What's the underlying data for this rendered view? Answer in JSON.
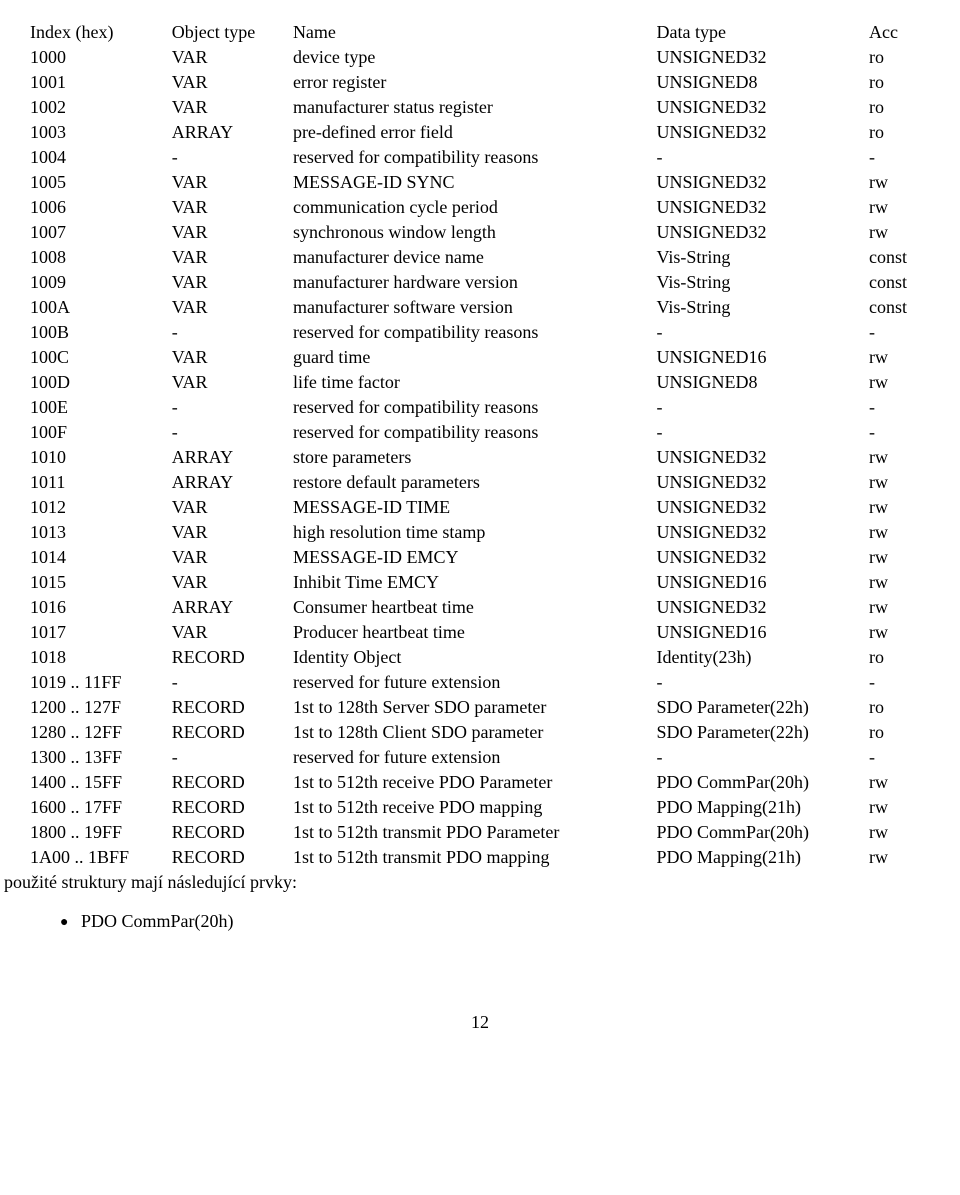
{
  "columns": [
    "Index (hex)",
    "Object type",
    "Name",
    "Data type",
    "Acc"
  ],
  "rows": [
    [
      "1000",
      "VAR",
      "device type",
      "UNSIGNED32",
      "ro"
    ],
    [
      "1001",
      "VAR",
      "error register",
      "UNSIGNED8",
      "ro"
    ],
    [
      "1002",
      "VAR",
      "manufacturer status register",
      "UNSIGNED32",
      "ro"
    ],
    [
      "1003",
      "ARRAY",
      "pre-defined error field",
      "UNSIGNED32",
      "ro"
    ],
    [
      "1004",
      "-",
      "reserved for compatibility reasons",
      "-",
      "-"
    ],
    [
      "1005",
      "VAR",
      "MESSAGE-ID SYNC",
      "UNSIGNED32",
      "rw"
    ],
    [
      "1006",
      "VAR",
      "communication cycle period",
      "UNSIGNED32",
      "rw"
    ],
    [
      "1007",
      "VAR",
      "synchronous window length",
      "UNSIGNED32",
      "rw"
    ],
    [
      "1008",
      "VAR",
      "manufacturer device name",
      "Vis-String",
      "const"
    ],
    [
      "1009",
      "VAR",
      "manufacturer hardware version",
      "Vis-String",
      "const"
    ],
    [
      "100A",
      "VAR",
      "manufacturer software version",
      "Vis-String",
      "const"
    ],
    [
      "100B",
      "-",
      "reserved for compatibility reasons",
      "-",
      "-"
    ],
    [
      "100C",
      "VAR",
      "guard time",
      "UNSIGNED16",
      "rw"
    ],
    [
      "100D",
      "VAR",
      "life time factor",
      "UNSIGNED8",
      "rw"
    ],
    [
      "100E",
      "-",
      "reserved for compatibility reasons",
      "-",
      "-"
    ],
    [
      "100F",
      "-",
      "reserved for compatibility reasons",
      "-",
      "-"
    ],
    [
      "1010",
      "ARRAY",
      "store parameters",
      "UNSIGNED32",
      "rw"
    ],
    [
      "1011",
      "ARRAY",
      "restore default parameters",
      "UNSIGNED32",
      "rw"
    ],
    [
      "1012",
      "VAR",
      "MESSAGE-ID TIME",
      "UNSIGNED32",
      "rw"
    ],
    [
      "1013",
      "VAR",
      "high resolution time stamp",
      "UNSIGNED32",
      "rw"
    ],
    [
      "1014",
      "VAR",
      "MESSAGE-ID EMCY",
      "UNSIGNED32",
      "rw"
    ],
    [
      "1015",
      "VAR",
      "Inhibit Time EMCY",
      "UNSIGNED16",
      "rw"
    ],
    [
      "1016",
      "ARRAY",
      "Consumer heartbeat time",
      "UNSIGNED32",
      "rw"
    ],
    [
      "1017",
      "VAR",
      "Producer heartbeat time",
      "UNSIGNED16",
      "rw"
    ],
    [
      "1018",
      "RECORD",
      "Identity Object",
      "Identity(23h)",
      "ro"
    ],
    [
      "1019 .. 11FF",
      "-",
      "reserved for future extension",
      "-",
      "-"
    ],
    [
      "1200 .. 127F",
      "RECORD",
      "1st to 128th Server SDO parameter",
      "SDO Parameter(22h)",
      "ro"
    ],
    [
      "1280 .. 12FF",
      "RECORD",
      "1st to 128th Client SDO parameter",
      "SDO Parameter(22h)",
      "ro"
    ],
    [
      "1300 .. 13FF",
      "-",
      "reserved for future extension",
      "-",
      "-"
    ],
    [
      "1400 .. 15FF",
      "RECORD",
      "1st to 512th receive PDO Parameter",
      "PDO CommPar(20h)",
      "rw"
    ],
    [
      "1600 .. 17FF",
      "RECORD",
      "1st to 512th receive PDO mapping",
      "PDO Mapping(21h)",
      "rw"
    ],
    [
      "1800 .. 19FF",
      "RECORD",
      "1st to 512th transmit PDO Parameter",
      "PDO CommPar(20h)",
      "rw"
    ],
    [
      "1A00 .. 1BFF",
      "RECORD",
      "1st to 512th transmit PDO mapping",
      "PDO Mapping(21h)",
      "rw"
    ]
  ],
  "footerText": "použité struktury mají následující prvky:",
  "bulletItem": "PDO CommPar(20h)",
  "pageNumber": "12"
}
